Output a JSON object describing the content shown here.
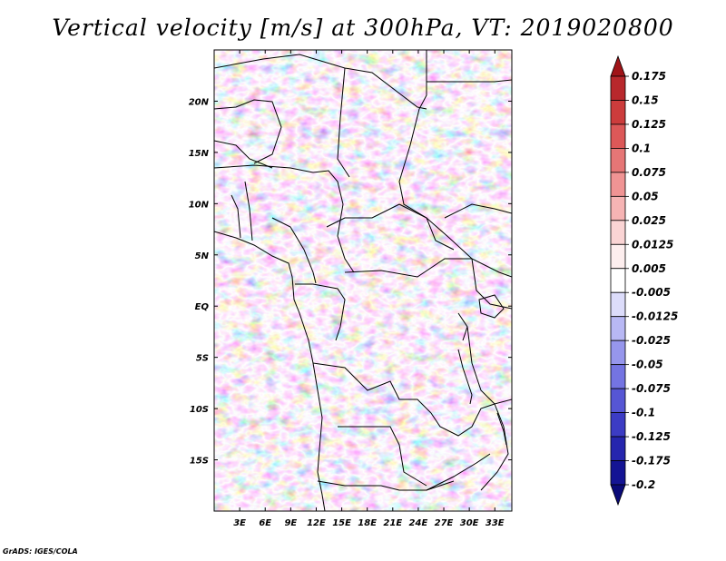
{
  "chart_data": {
    "type": "heatmap",
    "title": "Vertical velocity [m/s] at 300hPa, VT: 2019020800",
    "variable": "Vertical velocity",
    "units": "m/s",
    "level": "300hPa",
    "valid_time": "2019020800",
    "x_range_deg": [
      0,
      35
    ],
    "y_range_deg": [
      -20,
      25
    ],
    "x_ticks": [
      "3E",
      "6E",
      "9E",
      "12E",
      "15E",
      "18E",
      "21E",
      "24E",
      "27E",
      "30E",
      "33E"
    ],
    "x_tick_values": [
      3,
      6,
      9,
      12,
      15,
      18,
      21,
      24,
      27,
      30,
      33
    ],
    "y_ticks": [
      "20N",
      "15N",
      "10N",
      "5N",
      "EQ",
      "5S",
      "10S",
      "15S"
    ],
    "y_tick_values": [
      20,
      15,
      10,
      5,
      0,
      -5,
      -10,
      -15
    ],
    "colorbar": {
      "labels": [
        "0.175",
        "0.15",
        "0.125",
        "0.1",
        "0.075",
        "0.05",
        "0.025",
        "0.0125",
        "0.005",
        "-0.005",
        "-0.0125",
        "-0.025",
        "-0.05",
        "-0.075",
        "-0.1",
        "-0.125",
        "-0.175",
        "-0.2"
      ],
      "colors": [
        "#a01418",
        "#b8282c",
        "#cc3c3c",
        "#dc5858",
        "#e67676",
        "#f09494",
        "#f6b4b4",
        "#fad4d4",
        "#fdeeee",
        "#ffffff",
        "#dcdcfa",
        "#b8b8f4",
        "#9696ec",
        "#7474e2",
        "#5656d4",
        "#3c3cc4",
        "#2626ae",
        "#141494",
        "#0a0a78"
      ]
    }
  },
  "footer": {
    "credit": "GrADS: IGES/COLA"
  }
}
